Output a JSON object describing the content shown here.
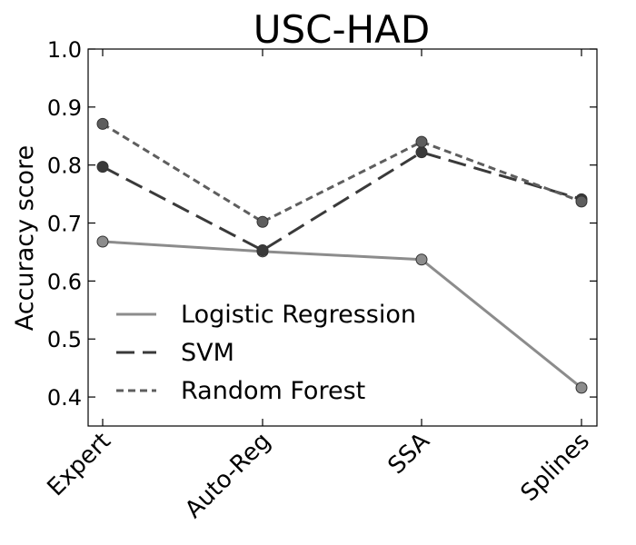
{
  "chart_data": {
    "type": "line",
    "title": "USC-HAD",
    "xlabel": "",
    "ylabel": "Accuracy score",
    "categories": [
      "Expert",
      "Auto-Reg",
      "SSA",
      "Splines"
    ],
    "ylim": [
      0.35,
      1.0
    ],
    "yticks": [
      "0.4",
      "0.5",
      "0.6",
      "0.7",
      "0.8",
      "0.9",
      "1.0"
    ],
    "grid": false,
    "legend_position": "lower-left",
    "series": [
      {
        "name": "Logistic Regression",
        "values": [
          0.668,
          0.651,
          0.637,
          0.416
        ],
        "color": "#8c8c8c",
        "line_style": "solid"
      },
      {
        "name": "SVM",
        "values": [
          0.797,
          0.653,
          0.822,
          0.741
        ],
        "color": "#3a3a3a",
        "line_style": "long-dash"
      },
      {
        "name": "Random Forest",
        "values": [
          0.871,
          0.702,
          0.84,
          0.737
        ],
        "color": "#5e5e5e",
        "line_style": "short-dash"
      }
    ]
  }
}
